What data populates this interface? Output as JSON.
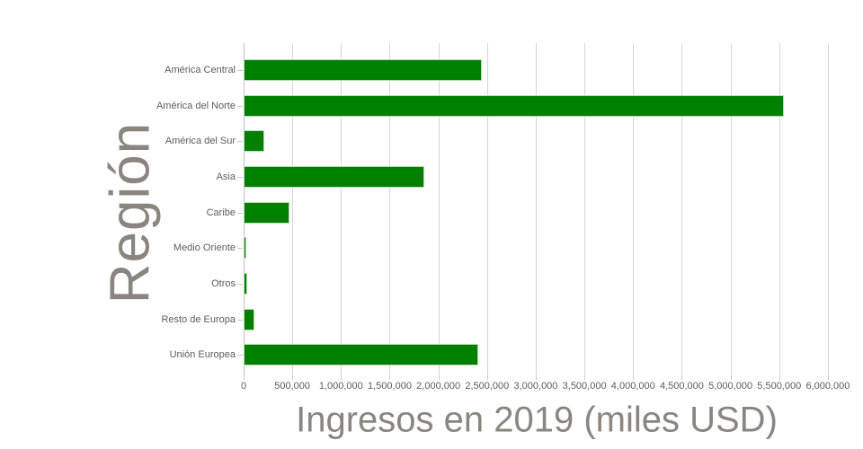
{
  "chart_data": {
    "type": "bar",
    "orientation": "horizontal",
    "title": "",
    "xlabel": "Ingresos en 2019 (miles USD)",
    "ylabel": "Región",
    "categories": [
      "América Central",
      "América del Norte",
      "América del Sur",
      "Asia",
      "Caribe",
      "Medio Oriente",
      "Otros",
      "Resto de Europa",
      "Unión Europea"
    ],
    "values": [
      2450000,
      5550000,
      210000,
      1860000,
      475000,
      30000,
      40000,
      110000,
      2410000
    ],
    "xlim": [
      0,
      6130000
    ],
    "xticks": [
      0,
      500000,
      1000000,
      1500000,
      2000000,
      2500000,
      3000000,
      3500000,
      4000000,
      4500000,
      5000000,
      5500000,
      6000000
    ],
    "xtick_labels": [
      "0",
      "500,000",
      "1,000,000",
      "1,500,000",
      "2,000,000",
      "2,500,000",
      "3,000,000",
      "3,500,000",
      "4,000,000",
      "4,500,000",
      "5,000,000",
      "5,500,000",
      "6,000,000"
    ],
    "grid": true,
    "legend": "none",
    "bar_color": "#008000",
    "bar_edge_color": "#bcd9bc",
    "grid_color": "#d6d6d6",
    "tick_label_color": "#5f5c58",
    "axis_title_color": "#8a857e",
    "background_color": "#ffffff"
  }
}
